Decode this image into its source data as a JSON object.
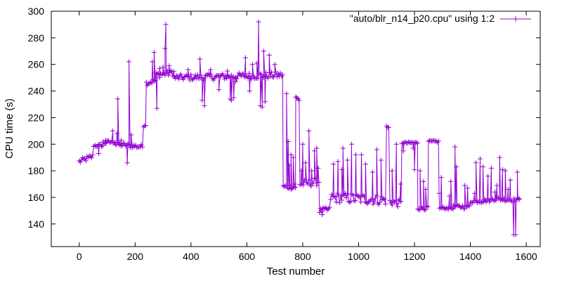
{
  "chart_data": {
    "type": "line",
    "title": "",
    "xlabel": "Test number",
    "ylabel": "CPU time (s)",
    "xlim": [
      -100,
      1650
    ],
    "ylim": [
      123,
      300
    ],
    "xticks": [
      0,
      200,
      400,
      600,
      800,
      1000,
      1200,
      1400,
      1600
    ],
    "yticks": [
      140,
      160,
      180,
      200,
      220,
      240,
      260,
      280,
      300
    ],
    "grid": false,
    "legend_position": "top-right",
    "series": [
      {
        "name": "\"auto/blr_n14_p20.cpu\" using 1:2",
        "color": "#9400d3",
        "marker": "plus",
        "segments": [
          {
            "x0": 0,
            "x1": 52,
            "y0": 187,
            "y1": 191,
            "noise": 2
          },
          {
            "x0": 52,
            "x1": 85,
            "y0": 199,
            "y1": 199,
            "noise": 1.2
          },
          {
            "x0": 85,
            "x1": 130,
            "y0": 201,
            "y1": 202,
            "noise": 1.5
          },
          {
            "x0": 130,
            "x1": 230,
            "y0": 200,
            "y1": 198,
            "noise": 1.8
          },
          {
            "x0": 230,
            "x1": 240,
            "y0": 214,
            "y1": 215,
            "noise": 1
          },
          {
            "x0": 240,
            "x1": 275,
            "y0": 246,
            "y1": 248,
            "noise": 2
          },
          {
            "x0": 275,
            "x1": 340,
            "y0": 252,
            "y1": 254,
            "noise": 2.5
          },
          {
            "x0": 340,
            "x1": 730,
            "y0": 250,
            "y1": 252,
            "noise": 2.5
          },
          {
            "x0": 730,
            "x1": 775,
            "y0": 168,
            "y1": 168,
            "noise": 2
          },
          {
            "x0": 775,
            "x1": 790,
            "y0": 235,
            "y1": 233,
            "noise": 1.5
          },
          {
            "x0": 790,
            "x1": 860,
            "y0": 170,
            "y1": 172,
            "noise": 3
          },
          {
            "x0": 860,
            "x1": 900,
            "y0": 150,
            "y1": 151,
            "noise": 2
          },
          {
            "x0": 900,
            "x1": 1100,
            "y0": 160,
            "y1": 158,
            "noise": 4
          },
          {
            "x0": 1100,
            "x1": 1112,
            "y0": 213,
            "y1": 212,
            "noise": 1
          },
          {
            "x0": 1112,
            "x1": 1155,
            "y0": 157,
            "y1": 155,
            "noise": 3
          },
          {
            "x0": 1155,
            "x1": 1212,
            "y0": 201,
            "y1": 201,
            "noise": 0.8
          },
          {
            "x0": 1212,
            "x1": 1250,
            "y0": 152,
            "y1": 152,
            "noise": 1.5
          },
          {
            "x0": 1250,
            "x1": 1290,
            "y0": 202,
            "y1": 202,
            "noise": 0.8
          },
          {
            "x0": 1290,
            "x1": 1340,
            "y0": 152,
            "y1": 152,
            "noise": 1
          },
          {
            "x0": 1340,
            "x1": 1400,
            "y0": 153,
            "y1": 153,
            "noise": 1.5
          },
          {
            "x0": 1400,
            "x1": 1480,
            "y0": 157,
            "y1": 158,
            "noise": 1.5
          },
          {
            "x0": 1480,
            "x1": 1570,
            "y0": 159,
            "y1": 158,
            "noise": 1.5
          },
          {
            "x0": 1570,
            "x1": 1576,
            "y0": 159,
            "y1": 159,
            "noise": 1
          }
        ],
        "spikes": [
          {
            "x": 70,
            "y": 193
          },
          {
            "x": 95,
            "y": 203
          },
          {
            "x": 120,
            "y": 210
          },
          {
            "x": 135,
            "y": 208
          },
          {
            "x": 138,
            "y": 234
          },
          {
            "x": 150,
            "y": 203
          },
          {
            "x": 172,
            "y": 186
          },
          {
            "x": 178,
            "y": 262
          },
          {
            "x": 186,
            "y": 207
          },
          {
            "x": 262,
            "y": 262
          },
          {
            "x": 268,
            "y": 269
          },
          {
            "x": 278,
            "y": 227
          },
          {
            "x": 288,
            "y": 257
          },
          {
            "x": 300,
            "y": 258
          },
          {
            "x": 307,
            "y": 272
          },
          {
            "x": 310,
            "y": 290
          },
          {
            "x": 322,
            "y": 259
          },
          {
            "x": 390,
            "y": 256
          },
          {
            "x": 432,
            "y": 264
          },
          {
            "x": 440,
            "y": 233
          },
          {
            "x": 448,
            "y": 229
          },
          {
            "x": 470,
            "y": 256
          },
          {
            "x": 500,
            "y": 241
          },
          {
            "x": 530,
            "y": 255
          },
          {
            "x": 540,
            "y": 234
          },
          {
            "x": 545,
            "y": 233
          },
          {
            "x": 553,
            "y": 235
          },
          {
            "x": 560,
            "y": 247
          },
          {
            "x": 595,
            "y": 265
          },
          {
            "x": 610,
            "y": 240
          },
          {
            "x": 620,
            "y": 260
          },
          {
            "x": 636,
            "y": 261
          },
          {
            "x": 642,
            "y": 292
          },
          {
            "x": 648,
            "y": 229
          },
          {
            "x": 655,
            "y": 228
          },
          {
            "x": 660,
            "y": 270
          },
          {
            "x": 665,
            "y": 232
          },
          {
            "x": 680,
            "y": 267
          },
          {
            "x": 700,
            "y": 260
          },
          {
            "x": 742,
            "y": 238
          },
          {
            "x": 748,
            "y": 202
          },
          {
            "x": 752,
            "y": 184
          },
          {
            "x": 758,
            "y": 192
          },
          {
            "x": 766,
            "y": 190
          },
          {
            "x": 770,
            "y": 170
          },
          {
            "x": 795,
            "y": 180
          },
          {
            "x": 800,
            "y": 200
          },
          {
            "x": 810,
            "y": 186
          },
          {
            "x": 822,
            "y": 210
          },
          {
            "x": 832,
            "y": 180
          },
          {
            "x": 842,
            "y": 195
          },
          {
            "x": 850,
            "y": 197
          },
          {
            "x": 855,
            "y": 182
          },
          {
            "x": 870,
            "y": 147
          },
          {
            "x": 910,
            "y": 185
          },
          {
            "x": 926,
            "y": 187
          },
          {
            "x": 940,
            "y": 181
          },
          {
            "x": 944,
            "y": 197
          },
          {
            "x": 960,
            "y": 188
          },
          {
            "x": 975,
            "y": 200
          },
          {
            "x": 990,
            "y": 192
          },
          {
            "x": 1010,
            "y": 192
          },
          {
            "x": 1025,
            "y": 185
          },
          {
            "x": 1050,
            "y": 179
          },
          {
            "x": 1065,
            "y": 196
          },
          {
            "x": 1080,
            "y": 188
          },
          {
            "x": 1120,
            "y": 180
          },
          {
            "x": 1135,
            "y": 200
          },
          {
            "x": 1150,
            "y": 170
          },
          {
            "x": 1160,
            "y": 195
          },
          {
            "x": 1195,
            "y": 197
          },
          {
            "x": 1200,
            "y": 181
          },
          {
            "x": 1220,
            "y": 180
          },
          {
            "x": 1232,
            "y": 172
          },
          {
            "x": 1240,
            "y": 166
          },
          {
            "x": 1288,
            "y": 163
          },
          {
            "x": 1296,
            "y": 175
          },
          {
            "x": 1325,
            "y": 161
          },
          {
            "x": 1330,
            "y": 172
          },
          {
            "x": 1345,
            "y": 198
          },
          {
            "x": 1350,
            "y": 183
          },
          {
            "x": 1380,
            "y": 169
          },
          {
            "x": 1390,
            "y": 167
          },
          {
            "x": 1415,
            "y": 163
          },
          {
            "x": 1420,
            "y": 186
          },
          {
            "x": 1435,
            "y": 189
          },
          {
            "x": 1445,
            "y": 183
          },
          {
            "x": 1463,
            "y": 176
          },
          {
            "x": 1475,
            "y": 182
          },
          {
            "x": 1488,
            "y": 164
          },
          {
            "x": 1495,
            "y": 169
          },
          {
            "x": 1505,
            "y": 190
          },
          {
            "x": 1515,
            "y": 181
          },
          {
            "x": 1525,
            "y": 180
          },
          {
            "x": 1535,
            "y": 166
          },
          {
            "x": 1543,
            "y": 173
          },
          {
            "x": 1555,
            "y": 132
          },
          {
            "x": 1562,
            "y": 132
          },
          {
            "x": 1568,
            "y": 179
          },
          {
            "x": 1575,
            "y": 159
          }
        ]
      }
    ]
  }
}
